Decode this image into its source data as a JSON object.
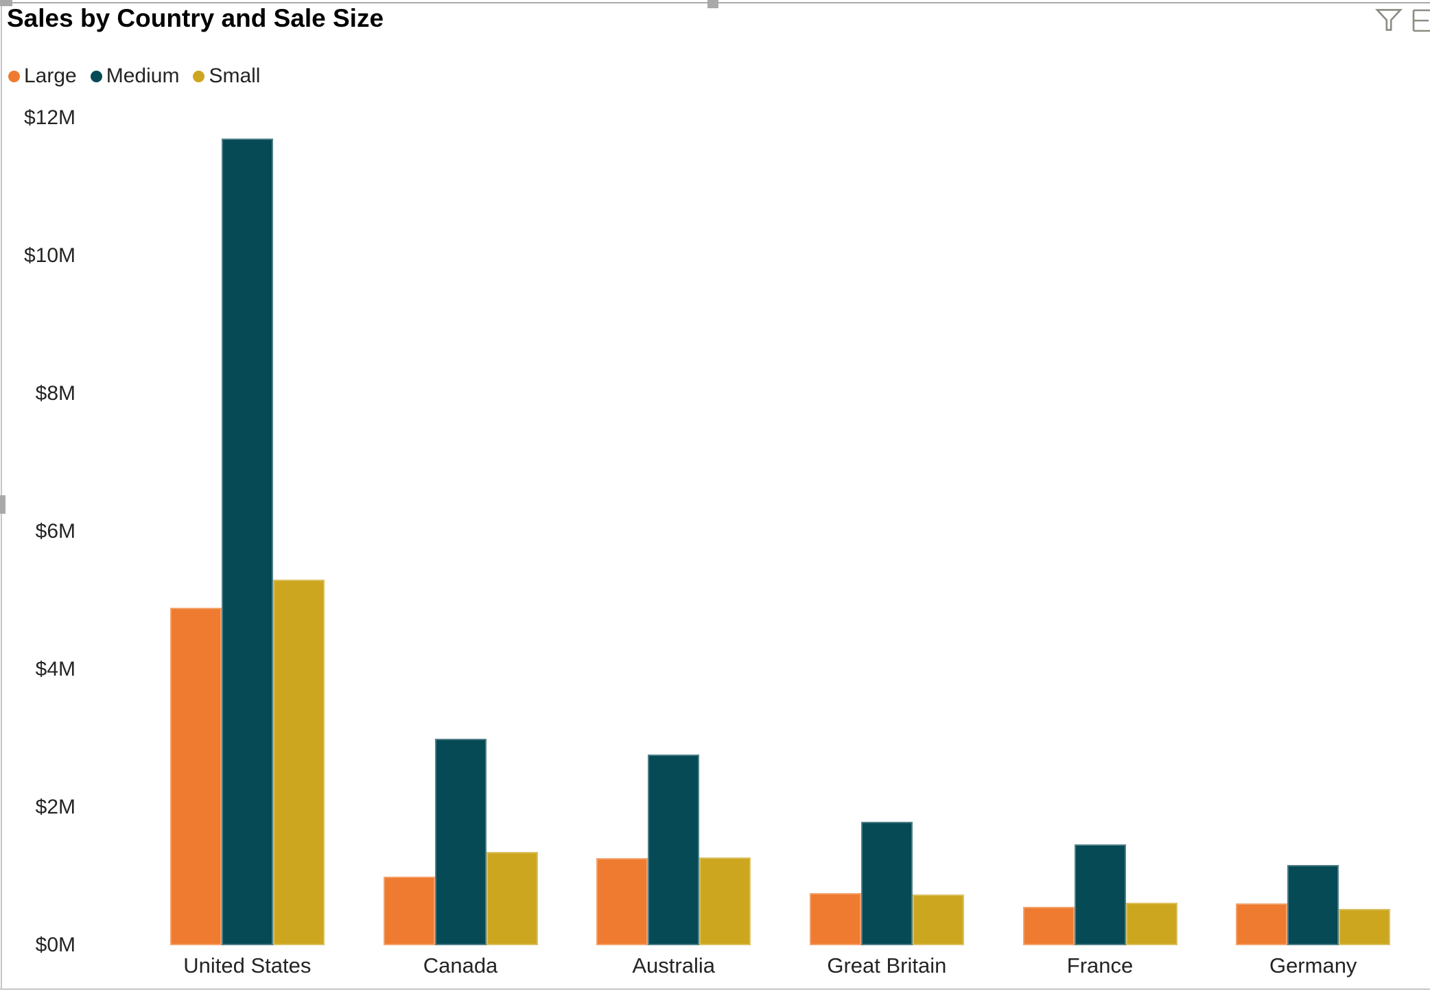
{
  "visual": {
    "header_icons": [
      {
        "name": "filter-funnel-icon"
      },
      {
        "name": "options-icon-partial"
      }
    ],
    "selection_handles": [
      "top-left",
      "top-middle",
      "left-middle"
    ]
  },
  "colors": {
    "title": "#000000",
    "text": "#252423",
    "accent_gray": "#a9a9a9",
    "border_light": "#c6c6c6",
    "icon_gray": "#8b8b80"
  },
  "chart_data": {
    "type": "bar",
    "title": "Sales by Country and Sale Size",
    "categories": [
      "United States",
      "Canada",
      "Australia",
      "Great Britain",
      "France",
      "Germany"
    ],
    "series": [
      {
        "name": "Large",
        "color": "#EE7B30",
        "values": [
          4.9,
          1.0,
          1.26,
          0.76,
          0.56,
          0.61
        ]
      },
      {
        "name": "Medium",
        "color": "#054A55",
        "values": [
          11.7,
          3.0,
          2.77,
          1.79,
          1.46,
          1.16
        ]
      },
      {
        "name": "Small",
        "color": "#CCA61F",
        "values": [
          5.3,
          1.35,
          1.27,
          0.74,
          0.62,
          0.53
        ]
      }
    ],
    "xlabel": "",
    "ylabel": "",
    "y_axis": {
      "min": 0,
      "max": 12,
      "step": 2,
      "tick_prefix": "$",
      "tick_suffix": "M"
    },
    "ylim": [
      0,
      12
    ],
    "grid": false,
    "legend_position": "top-left"
  }
}
